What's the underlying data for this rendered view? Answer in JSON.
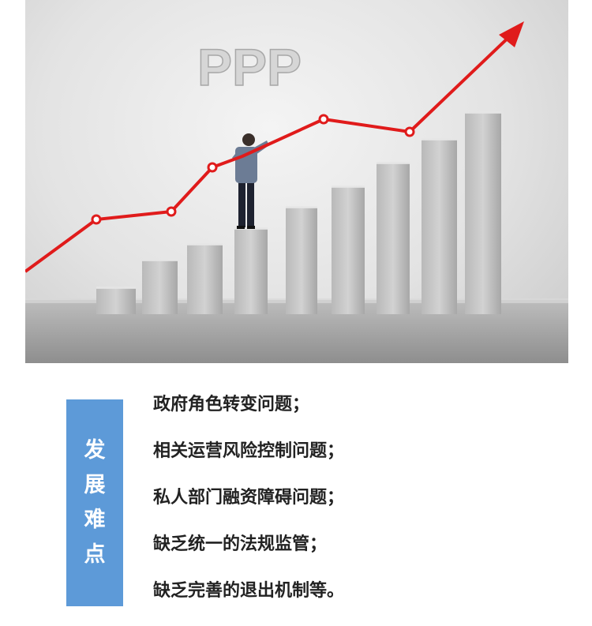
{
  "hero": {
    "watermark_text": "PPP"
  },
  "section": {
    "label_chars": [
      "发",
      "展",
      "难",
      "点"
    ],
    "items": [
      "政府角色转变问题；",
      "相关运营风险控制问题；",
      "私人部门融资障碍问题；",
      "缺乏统一的法规监管；",
      "缺乏完善的退出机制等。"
    ]
  },
  "colors": {
    "badge_bg": "#5d9ad8",
    "arrow_red": "#e01b1b",
    "text": "#222222"
  }
}
